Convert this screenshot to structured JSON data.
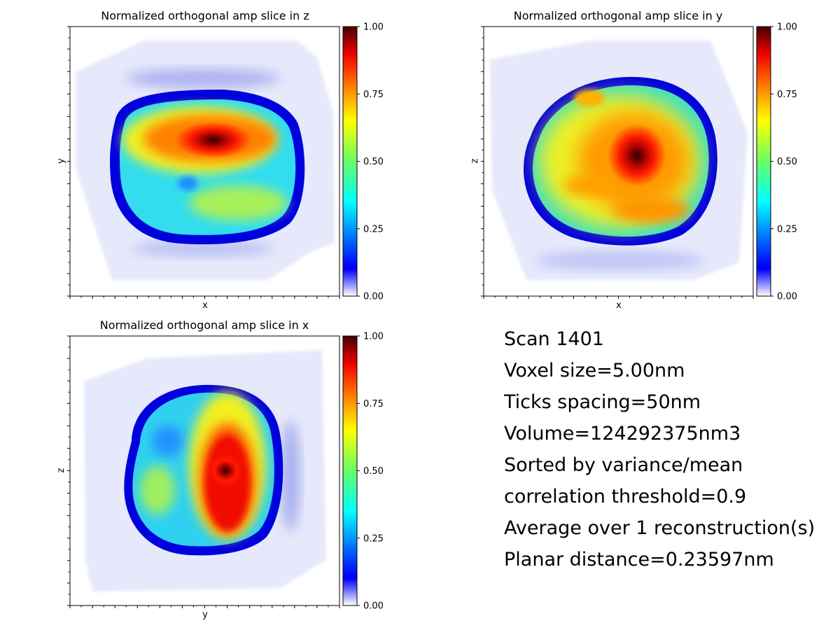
{
  "chart_data": [
    {
      "type": "heatmap",
      "title": "Normalized orthogonal amp slice in z",
      "xlabel": "x",
      "ylabel": "y",
      "colormap": "jet with white-to-blue low end",
      "colorbar": {
        "ticks": [
          "0.00",
          "0.25",
          "0.50",
          "0.75",
          "1.00"
        ],
        "range": [
          0,
          1
        ]
      },
      "background": "#ffffff",
      "grid": false,
      "tick_labels_shown": false,
      "peak_value": 1.0,
      "particle_mean_level": 0.6,
      "shell_level": 0.1,
      "surroundings_level": 0.05
    },
    {
      "type": "heatmap",
      "title": "Normalized orthogonal amp slice in y",
      "xlabel": "x",
      "ylabel": "z",
      "colormap": "jet with white-to-blue low end",
      "colorbar": {
        "ticks": [
          "0.00",
          "0.25",
          "0.50",
          "0.75",
          "1.00"
        ],
        "range": [
          0,
          1
        ]
      },
      "background": "#ffffff",
      "grid": false,
      "tick_labels_shown": false,
      "peak_value": 1.0,
      "particle_mean_level": 0.65,
      "shell_level": 0.1,
      "surroundings_level": 0.05
    },
    {
      "type": "heatmap",
      "title": "Normalized orthogonal amp slice in x",
      "xlabel": "y",
      "ylabel": "z",
      "colormap": "jet with white-to-blue low end",
      "colorbar": {
        "ticks": [
          "0.00",
          "0.25",
          "0.50",
          "0.75",
          "1.00"
        ],
        "range": [
          0,
          1
        ]
      },
      "background": "#ffffff",
      "grid": false,
      "tick_labels_shown": false,
      "peak_value": 1.0,
      "particle_mean_level": 0.55,
      "shell_level": 0.1,
      "surroundings_level": 0.05
    }
  ],
  "info": {
    "lines": [
      "Scan 1401",
      "Voxel size=5.00nm",
      "Ticks spacing=50nm",
      "Volume=124292375nm3",
      "Sorted by variance/mean",
      "correlation threshold=0.9",
      "Average over 1 reconstruction(s)",
      "Planar distance=0.23597nm"
    ]
  }
}
